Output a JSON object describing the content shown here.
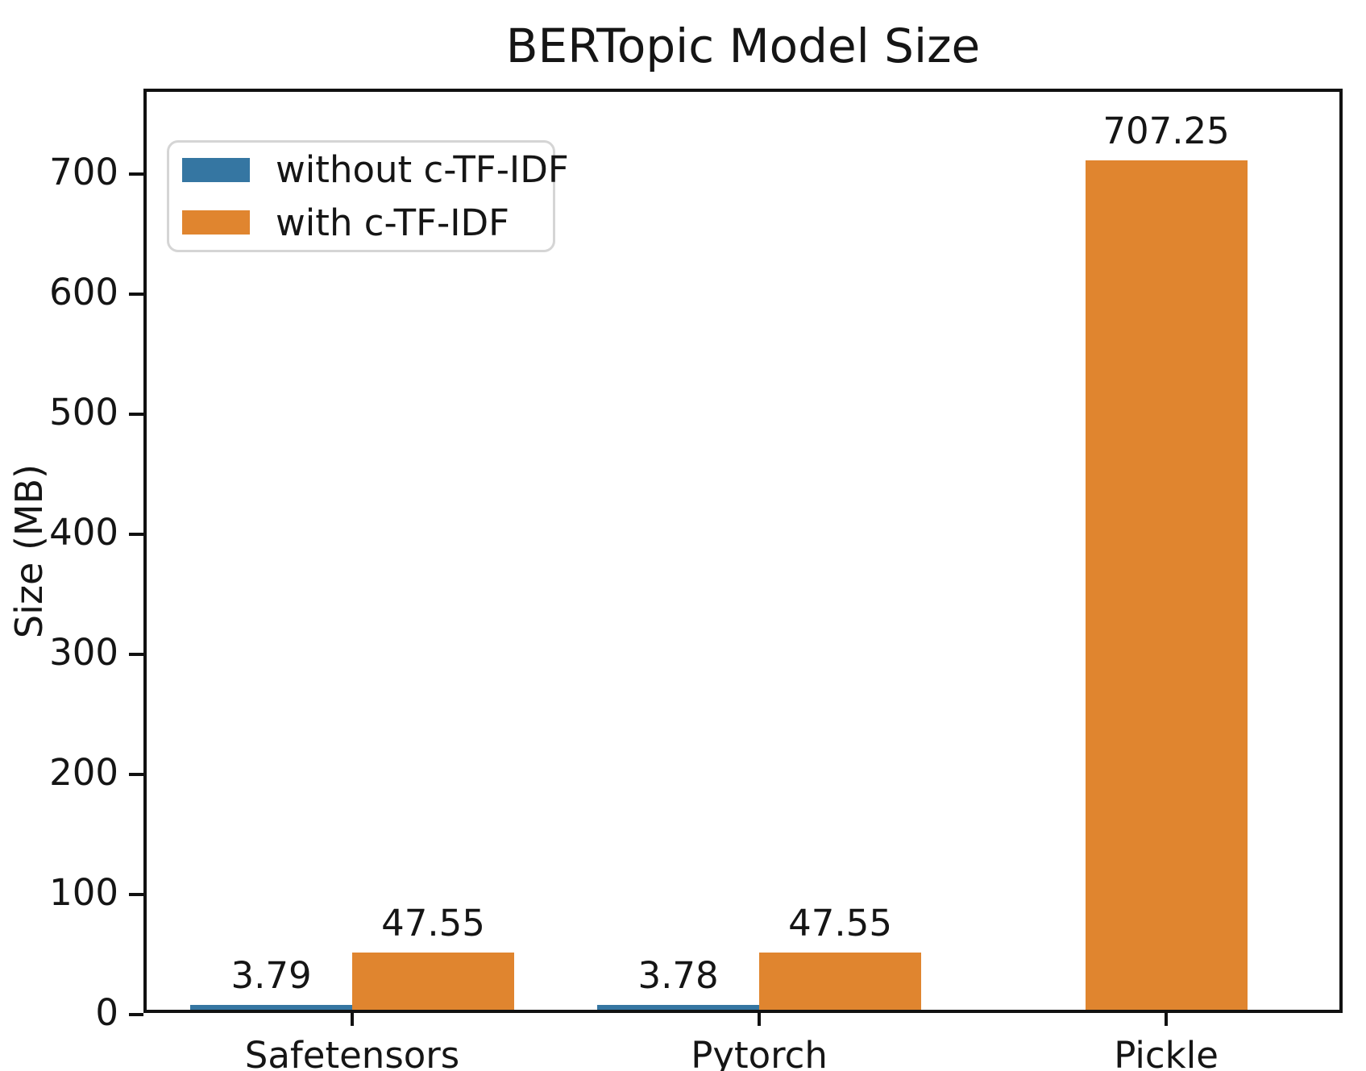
{
  "chart_data": {
    "type": "bar",
    "title": "BERTopic Model Size",
    "ylabel": "Size (MB)",
    "xlabel": "",
    "categories": [
      "Safetensors",
      "Pytorch",
      "Pickle"
    ],
    "series": [
      {
        "name": "without c-TF-IDF",
        "color": "#3576a2",
        "values": [
          3.79,
          3.78,
          null
        ],
        "bar_labels": [
          "3.79",
          "3.78",
          null
        ]
      },
      {
        "name": "with c-TF-IDF",
        "color": "#e0852f",
        "values": [
          47.55,
          47.55,
          707.25
        ],
        "bar_labels": [
          "47.55",
          "47.55",
          "707.25"
        ]
      }
    ],
    "yticks": [
      0,
      100,
      200,
      300,
      400,
      500,
      600,
      700
    ],
    "ylim": [
      0,
      770
    ],
    "grid": false,
    "legend_position": "upper left",
    "value_labels_shown": true
  }
}
